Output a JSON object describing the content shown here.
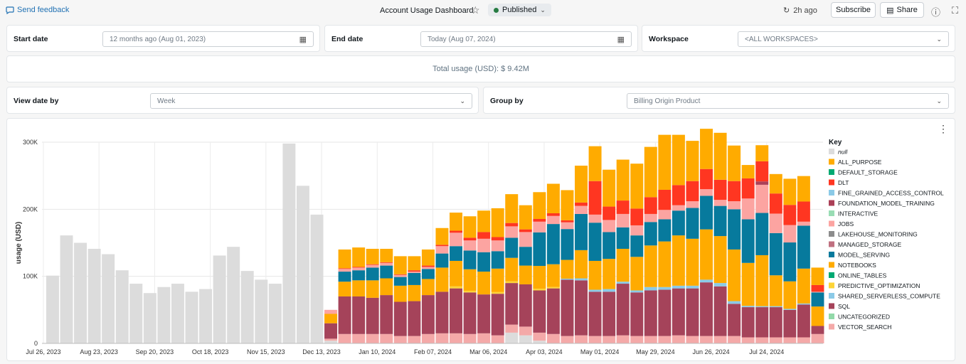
{
  "header": {
    "feedback_label": "Send feedback",
    "title": "Account Usage Dashboard",
    "status_label": "Published",
    "refresh_label": "2h ago",
    "subscribe_label": "Subscribe",
    "share_label": "Share"
  },
  "filters": {
    "start_label": "Start date",
    "start_value": "12 months ago (Aug 01, 2023)",
    "end_label": "End date",
    "end_value": "Today (Aug 07, 2024)",
    "workspace_label": "Workspace",
    "workspace_value": "<ALL WORKSPACES>",
    "view_label": "View date by",
    "view_value": "Week",
    "group_label": "Group by",
    "group_value": "Billing Origin Product"
  },
  "total_text": "Total usage (USD): $ 9.42M",
  "chart_data": {
    "type": "bar",
    "stacked": true,
    "ylabel": "usage (USD)",
    "ylim": [
      0,
      300000
    ],
    "y_ticks": [
      "0",
      "100K",
      "200K",
      "300K"
    ],
    "x_ticks": [
      "Jul 26, 2023",
      "Aug 23, 2023",
      "Sep 20, 2023",
      "Oct 18, 2023",
      "Nov 15, 2023",
      "Dec 13, 2023",
      "Jan 10, 2024",
      "Feb 07, 2024",
      "Mar 06, 2024",
      "Apr 03, 2024",
      "May 01, 2024",
      "May 29, 2024",
      "Jun 26, 2024",
      "Jul 24, 2024"
    ],
    "legend_title": "Key",
    "legend_position": "right",
    "series": [
      {
        "name": "null",
        "color": "#dcdcdc",
        "values": [
          101000,
          161000,
          150000,
          141000,
          133000,
          109000,
          89000,
          75000,
          84000,
          89000,
          77000,
          81000,
          131000,
          144000,
          108000,
          95000,
          89000,
          298000,
          235000,
          192000,
          4000,
          0,
          0,
          0,
          0,
          0,
          0,
          0,
          0,
          0,
          0,
          0,
          0,
          16000,
          12000,
          4000,
          0,
          0,
          0,
          0,
          0,
          0,
          0,
          0,
          0,
          0,
          0,
          0,
          0,
          0,
          0,
          0,
          0,
          0,
          0,
          0
        ]
      },
      {
        "name": "VECTOR_SEARCH",
        "color": "#f4a9a8",
        "values": [
          0,
          0,
          0,
          0,
          0,
          0,
          0,
          0,
          0,
          0,
          0,
          0,
          0,
          0,
          0,
          0,
          0,
          0,
          0,
          0,
          3000,
          14000,
          14000,
          14000,
          14000,
          11000,
          11000,
          14000,
          15000,
          15000,
          14000,
          15000,
          12000,
          12000,
          13000,
          12000,
          14000,
          11000,
          12000,
          11000,
          11000,
          12000,
          11000,
          11000,
          11000,
          12000,
          11000,
          11000,
          11000,
          11000,
          9000,
          9000,
          9000,
          9000,
          9000,
          14000
        ]
      },
      {
        "name": "SQL",
        "color": "#a5435a",
        "values": [
          0,
          0,
          0,
          0,
          0,
          0,
          0,
          0,
          0,
          0,
          0,
          0,
          0,
          0,
          0,
          0,
          0,
          0,
          0,
          0,
          23000,
          56000,
          56000,
          54000,
          58000,
          51000,
          52000,
          58000,
          62000,
          67000,
          62000,
          58000,
          62000,
          62000,
          63000,
          63000,
          68000,
          84000,
          82000,
          66000,
          66000,
          77000,
          65000,
          68000,
          69000,
          70000,
          71000,
          80000,
          74000,
          48000,
          45000,
          45000,
          45000,
          41000,
          49000,
          12000
        ]
      },
      {
        "name": "UNCATEGORIZED",
        "color": "#92d9a9",
        "values": [
          0,
          0,
          0,
          0,
          0,
          0,
          0,
          0,
          0,
          0,
          0,
          0,
          0,
          0,
          0,
          0,
          0,
          0,
          0,
          0,
          0,
          0,
          0,
          0,
          0,
          0,
          0,
          0,
          0,
          0,
          0,
          0,
          0,
          0,
          0,
          0,
          0,
          0,
          0,
          0,
          0,
          0,
          0,
          0,
          0,
          0,
          0,
          0,
          0,
          0,
          0,
          0,
          0,
          0,
          0,
          0
        ]
      },
      {
        "name": "SHARED_SERVERLESS_COMPUTE",
        "color": "#8bcae7",
        "values": [
          0,
          0,
          0,
          0,
          0,
          0,
          0,
          0,
          0,
          0,
          0,
          0,
          0,
          0,
          0,
          0,
          0,
          0,
          0,
          0,
          0,
          0,
          0,
          0,
          0,
          0,
          0,
          0,
          0,
          0,
          0,
          0,
          0,
          0,
          0,
          0,
          0,
          1500,
          3000,
          3000,
          4000,
          3000,
          3000,
          5000,
          4000,
          4000,
          4000,
          4000,
          5000,
          4000,
          2000,
          1500,
          1500,
          1500,
          1500,
          0
        ]
      },
      {
        "name": "PREDICTIVE_OPTIMIZATION",
        "color": "#fdd437",
        "values": [
          0,
          0,
          0,
          0,
          0,
          0,
          0,
          0,
          0,
          0,
          0,
          0,
          0,
          0,
          0,
          0,
          0,
          0,
          0,
          0,
          0,
          0,
          0,
          0,
          0,
          0,
          0,
          0,
          0,
          3000,
          2500,
          0,
          2500,
          2500,
          0,
          2500,
          2000,
          0,
          0,
          0,
          0,
          0,
          0,
          0,
          0,
          0,
          0,
          0,
          0,
          0,
          0,
          0,
          0,
          0,
          0,
          0
        ]
      },
      {
        "name": "ONLINE_TABLES",
        "color": "#00a972",
        "values": [
          0,
          0,
          0,
          0,
          0,
          0,
          0,
          0,
          0,
          0,
          0,
          0,
          0,
          0,
          0,
          0,
          0,
          0,
          0,
          0,
          0,
          0,
          0,
          0,
          0,
          0,
          0,
          0,
          0,
          0,
          0,
          0,
          0,
          0,
          0,
          0,
          0,
          0,
          0,
          0,
          0,
          0,
          0,
          0,
          0,
          0,
          0,
          0,
          0,
          0,
          0,
          0,
          0,
          0,
          0,
          0
        ]
      },
      {
        "name": "NOTEBOOKS",
        "color": "#ffab00",
        "values": [
          0,
          0,
          0,
          0,
          0,
          0,
          0,
          0,
          0,
          0,
          0,
          0,
          0,
          0,
          0,
          0,
          0,
          0,
          0,
          0,
          14000,
          22000,
          24000,
          26000,
          25000,
          24000,
          24000,
          24000,
          36000,
          38000,
          32000,
          34000,
          35000,
          35000,
          28000,
          34000,
          34000,
          28000,
          42000,
          43000,
          45000,
          49000,
          50000,
          62000,
          68000,
          75000,
          70000,
          75000,
          70000,
          77000,
          64000,
          76000,
          46000,
          41000,
          52000,
          29000
        ]
      },
      {
        "name": "MODEL_SERVING",
        "color": "#077a9d",
        "values": [
          0,
          0,
          0,
          0,
          0,
          0,
          0,
          0,
          0,
          0,
          0,
          0,
          0,
          0,
          0,
          0,
          0,
          0,
          0,
          0,
          0,
          15000,
          15000,
          19000,
          19000,
          13000,
          18000,
          15000,
          21000,
          22000,
          28000,
          29000,
          26000,
          30000,
          28000,
          50000,
          60000,
          46000,
          54000,
          57000,
          40000,
          32000,
          32000,
          35000,
          33000,
          37000,
          46000,
          50000,
          45000,
          60000,
          65000,
          63000,
          63000,
          58000,
          64000,
          21000
        ]
      },
      {
        "name": "MANAGED_STORAGE",
        "color": "#bf7080",
        "values": [
          0,
          0,
          0,
          0,
          0,
          0,
          0,
          0,
          0,
          0,
          0,
          0,
          0,
          0,
          0,
          0,
          0,
          0,
          0,
          0,
          0,
          0,
          0,
          0,
          0,
          0,
          0,
          0,
          0,
          0,
          0,
          0,
          0,
          0,
          0,
          0,
          0,
          0,
          0,
          0,
          0,
          0,
          0,
          0,
          0,
          0,
          0,
          0,
          0,
          0,
          0,
          0,
          0,
          0,
          0,
          0
        ]
      },
      {
        "name": "LAKEHOUSE_MONITORING",
        "color": "#8c8c8c",
        "values": [
          0,
          0,
          0,
          0,
          0,
          0,
          0,
          0,
          0,
          0,
          0,
          0,
          0,
          0,
          0,
          0,
          0,
          0,
          0,
          0,
          0,
          0,
          0,
          0,
          0,
          0,
          0,
          0,
          0,
          0,
          0,
          0,
          0,
          0,
          0,
          0,
          0,
          0,
          0,
          0,
          0,
          0,
          0,
          0,
          0,
          0,
          0,
          0,
          0,
          0,
          0,
          0,
          0,
          0,
          0,
          0
        ]
      },
      {
        "name": "JOBS",
        "color": "#fca4a1",
        "values": [
          0,
          0,
          0,
          0,
          0,
          0,
          0,
          0,
          0,
          0,
          0,
          0,
          0,
          0,
          0,
          0,
          0,
          0,
          0,
          0,
          6000,
          4000,
          4000,
          4000,
          4000,
          3000,
          2000,
          3000,
          11000,
          20000,
          15000,
          20000,
          16000,
          17000,
          22000,
          16000,
          12000,
          10000,
          12000,
          12000,
          18000,
          20000,
          15000,
          12000,
          14000,
          8000,
          10000,
          10000,
          9000,
          12000,
          31000,
          42000,
          29000,
          26000,
          6000,
          1000
        ]
      },
      {
        "name": "INTERACTIVE",
        "color": "#99ddb4",
        "values": [
          0,
          0,
          0,
          0,
          0,
          0,
          0,
          0,
          0,
          0,
          0,
          0,
          0,
          0,
          0,
          0,
          0,
          0,
          0,
          0,
          0,
          0,
          0,
          0,
          0,
          0,
          0,
          0,
          0,
          0,
          0,
          0,
          0,
          0,
          0,
          0,
          0,
          0,
          0,
          0,
          0,
          0,
          0,
          0,
          0,
          0,
          0,
          0,
          0,
          0,
          0,
          0,
          0,
          0,
          0,
          0
        ]
      },
      {
        "name": "FOUNDATION_MODEL_TRAINING",
        "color": "#ab4057",
        "values": [
          0,
          0,
          0,
          0,
          0,
          0,
          0,
          0,
          0,
          0,
          0,
          0,
          0,
          0,
          0,
          0,
          0,
          0,
          0,
          0,
          0,
          0,
          0,
          0,
          0,
          0,
          0,
          0,
          0,
          0,
          0,
          0,
          0,
          0,
          0,
          0,
          0,
          0,
          0,
          0,
          0,
          0,
          0,
          0,
          0,
          0,
          0,
          0,
          0,
          0,
          0,
          5000,
          0,
          0,
          0,
          0
        ]
      },
      {
        "name": "FINE_GRAINED_ACCESS_CONTROL",
        "color": "#8bcae7",
        "values": [
          0,
          0,
          0,
          0,
          0,
          0,
          0,
          0,
          0,
          0,
          0,
          0,
          0,
          0,
          0,
          0,
          0,
          0,
          0,
          0,
          0,
          0,
          0,
          0,
          0,
          0,
          0,
          0,
          0,
          0,
          0,
          0,
          0,
          0,
          0,
          0,
          0,
          0,
          0,
          0,
          0,
          0,
          0,
          0,
          0,
          0,
          0,
          0,
          0,
          0,
          0,
          0,
          0,
          0,
          0,
          0
        ]
      },
      {
        "name": "DLT",
        "color": "#ff3621",
        "values": [
          0,
          0,
          0,
          0,
          0,
          0,
          0,
          0,
          0,
          0,
          0,
          0,
          0,
          0,
          0,
          0,
          0,
          0,
          0,
          0,
          0,
          1000,
          1000,
          1000,
          1000,
          1000,
          2000,
          2000,
          2000,
          3000,
          4000,
          10000,
          5000,
          5000,
          4000,
          4000,
          4000,
          3000,
          5000,
          50000,
          20000,
          20000,
          25000,
          25000,
          30000,
          30000,
          30000,
          30000,
          30000,
          30000,
          30000,
          30000,
          30000,
          30000,
          30000,
          10000
        ]
      },
      {
        "name": "DEFAULT_STORAGE",
        "color": "#00a972",
        "values": [
          0,
          0,
          0,
          0,
          0,
          0,
          0,
          0,
          0,
          0,
          0,
          0,
          0,
          0,
          0,
          0,
          0,
          0,
          0,
          0,
          0,
          0,
          0,
          0,
          0,
          0,
          0,
          0,
          0,
          0,
          0,
          0,
          0,
          0,
          0,
          0,
          0,
          0,
          0,
          0,
          0,
          0,
          0,
          0,
          0,
          0,
          0,
          0,
          0,
          0,
          0,
          0,
          0,
          0,
          0,
          0
        ]
      },
      {
        "name": "ALL_PURPOSE",
        "color": "#ffab00",
        "values": [
          0,
          0,
          0,
          0,
          0,
          0,
          0,
          0,
          0,
          0,
          0,
          0,
          0,
          0,
          0,
          0,
          0,
          0,
          0,
          0,
          0,
          28000,
          29000,
          23000,
          20000,
          27000,
          21000,
          24000,
          25000,
          27000,
          32000,
          32000,
          43000,
          43000,
          36000,
          40000,
          44000,
          45000,
          55000,
          52000,
          55000,
          61000,
          67000,
          75000,
          82000,
          75000,
          60000,
          60000,
          70000,
          53000,
          20000,
          24000,
          29000,
          39000,
          38000,
          26000
        ]
      }
    ]
  }
}
